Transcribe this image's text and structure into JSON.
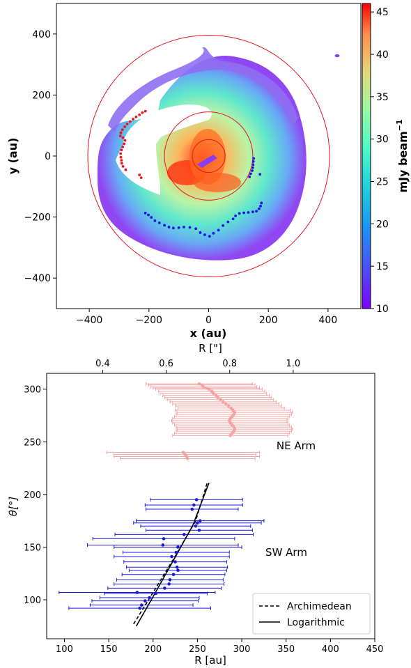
{
  "chart_data": [
    {
      "type": "heatmap",
      "xlabel": "x (au)",
      "ylabel": "y (au)",
      "xlim": [
        -510,
        510
      ],
      "ylim": [
        -500,
        500
      ],
      "x_ticks": [
        "−400",
        "−200",
        "0",
        "200",
        "400"
      ],
      "x_tick_values": [
        -400,
        -200,
        0,
        200,
        400
      ],
      "y_ticks": [
        "400",
        "200",
        "0",
        "−200",
        "−400"
      ],
      "y_tick_values": [
        400,
        200,
        0,
        -200,
        -400
      ],
      "colorbar": {
        "label": "mJy beam",
        "label_superscript": "−1",
        "range": [
          10,
          46
        ],
        "ticks": [
          "45",
          "40",
          "35",
          "30",
          "25",
          "20",
          "15",
          "10"
        ],
        "tick_values": [
          45,
          40,
          35,
          30,
          25,
          20,
          15,
          10
        ],
        "colormap": "rainbow"
      },
      "circles_radius_au": [
        55,
        148,
        405
      ],
      "circle_color": "#e8141c",
      "series": [
        {
          "color": "#e8141c",
          "points": [
            [
              -212,
              147
            ],
            [
              -222,
              142
            ],
            [
              -232,
              135
            ],
            [
              -243,
              128
            ],
            [
              -253,
              121
            ],
            [
              -263,
              113
            ],
            [
              -273,
              105
            ],
            [
              -281,
              96
            ],
            [
              -289,
              86
            ],
            [
              -294,
              76
            ],
            [
              -296,
              66
            ],
            [
              -287,
              60
            ],
            [
              -280,
              51
            ],
            [
              -283,
              40
            ],
            [
              -288,
              30
            ],
            [
              -292,
              20
            ],
            [
              -295,
              8
            ],
            [
              -294,
              -4
            ],
            [
              -292,
              -14
            ],
            [
              -291,
              -24
            ],
            [
              -287,
              -34
            ],
            [
              -278,
              -45
            ],
            [
              -232,
              -62
            ],
            [
              -226,
              -71
            ]
          ]
        },
        {
          "color": "#1414e8",
          "points": [
            [
              151,
              -8
            ],
            [
              150,
              -18
            ],
            [
              149,
              -28
            ],
            [
              148,
              -38
            ],
            [
              146,
              -48
            ],
            [
              141,
              -58
            ],
            [
              137,
              -68
            ],
            [
              172,
              -60
            ],
            [
              177,
              -154
            ],
            [
              174,
              -164
            ],
            [
              169,
              -173
            ],
            [
              160,
              -181
            ],
            [
              148,
              -183
            ],
            [
              133,
              -185
            ],
            [
              118,
              -186
            ],
            [
              103,
              -188
            ],
            [
              90,
              -196
            ],
            [
              82,
              -206
            ],
            [
              65,
              -216
            ],
            [
              48,
              -228
            ],
            [
              33,
              -243
            ],
            [
              16,
              -253
            ],
            [
              3,
              -263
            ],
            [
              -13,
              -258
            ],
            [
              -28,
              -251
            ],
            [
              -43,
              -238
            ],
            [
              -63,
              -234
            ],
            [
              -83,
              -233
            ],
            [
              -100,
              -235
            ],
            [
              -118,
              -236
            ],
            [
              -133,
              -233
            ],
            [
              -148,
              -227
            ],
            [
              -165,
              -219
            ],
            [
              -180,
              -212
            ],
            [
              -192,
              -201
            ],
            [
              -202,
              -193
            ],
            [
              -212,
              -187
            ]
          ]
        }
      ]
    },
    {
      "type": "scatter",
      "xlabel": "R [au]",
      "ylabel": "θ[°]",
      "top_axis_label": "R [\"]",
      "xlim": [
        80,
        450
      ],
      "ylim": [
        63,
        315
      ],
      "x_ticks": [
        "100",
        "150",
        "200",
        "250",
        "300",
        "350",
        "400",
        "450"
      ],
      "x_tick_values": [
        100,
        150,
        200,
        250,
        300,
        350,
        400,
        450
      ],
      "y_ticks": [
        "300",
        "250",
        "200",
        "150",
        "100"
      ],
      "y_tick_values": [
        300,
        250,
        200,
        150,
        100
      ],
      "top_ticks": [
        "0.4",
        "0.6",
        "0.8",
        "1.0"
      ],
      "top_tick_values": [
        0.4,
        0.6,
        0.8,
        1.0
      ],
      "top_axis_scale_au_per_arcsec": 358,
      "annotations": [
        "NE Arm",
        "SW Arm"
      ],
      "series": [
        {
          "name": "NE Arm",
          "color": "#f4a3a3",
          "points": [
            [
              252,
              305,
              60
            ],
            [
              255,
              304,
              60
            ],
            [
              257,
              302,
              60
            ],
            [
              260,
              301,
              60
            ],
            [
              263,
              300,
              60
            ],
            [
              266,
              298,
              60
            ],
            [
              268,
              296,
              60
            ],
            [
              271,
              294,
              60
            ],
            [
              273,
              292,
              60
            ],
            [
              276,
              290,
              60
            ],
            [
              279,
              288,
              60
            ],
            [
              282,
              286,
              60
            ],
            [
              285,
              284,
              60
            ],
            [
              288,
              282,
              60
            ],
            [
              290,
              280,
              65
            ],
            [
              292,
              278,
              65
            ],
            [
              291,
              276,
              65
            ],
            [
              289,
              274,
              65
            ],
            [
              287,
              272,
              65
            ],
            [
              286,
              270,
              65
            ],
            [
              287,
              268,
              65
            ],
            [
              289,
              266,
              65
            ],
            [
              291,
              264,
              65
            ],
            [
              292,
              262,
              65
            ],
            [
              291,
              260,
              65
            ],
            [
              289,
              258,
              65
            ],
            [
              287,
              256,
              65
            ],
            [
              234,
              240,
              86
            ],
            [
              236,
              238,
              80
            ],
            [
              238,
              236,
              82
            ],
            [
              239,
              234,
              76
            ]
          ]
        },
        {
          "name": "SW Arm",
          "color": "#1818dd",
          "points": [
            [
              249,
              195,
              52
            ],
            [
              246,
              190,
              55
            ],
            [
              244,
              186,
              52
            ],
            [
              250,
              173,
              72
            ],
            [
              253,
              175,
              72
            ],
            [
              248,
              170,
              62
            ],
            [
              252,
              166,
              60
            ],
            [
              235,
              162,
              78
            ],
            [
              212,
              158,
              80
            ],
            [
              211,
              152,
              85
            ],
            [
              228,
              150,
              72
            ],
            [
              226,
              145,
              60
            ],
            [
              221,
              141,
              65
            ],
            [
              225,
              136,
              58
            ],
            [
              227,
              131,
              57
            ],
            [
              228,
              128,
              55
            ],
            [
              223,
              124,
              58
            ],
            [
              219,
              119,
              60
            ],
            [
              218,
              115,
              62
            ],
            [
              213,
              111,
              64
            ],
            [
              203,
              106,
              58
            ],
            [
              196,
              102,
              56
            ],
            [
              182,
              107,
              88
            ],
            [
              191,
              99,
              60
            ],
            [
              187,
              95,
              58
            ],
            [
              185,
              92,
              80
            ]
          ]
        },
        {
          "name": "Archimedean",
          "color": "#000000",
          "dash": "dashed",
          "points": [
            [
              178,
              77
            ],
            [
              200,
              107
            ],
            [
              224,
              140
            ],
            [
              248,
              175
            ],
            [
              261,
              211
            ]
          ]
        },
        {
          "name": "Logarithmic",
          "color": "#000000",
          "dash": "solid",
          "points": [
            [
              181,
              75
            ],
            [
              198,
              100
            ],
            [
              222,
              136
            ],
            [
              245,
              171
            ],
            [
              263,
              211
            ]
          ]
        }
      ],
      "legend": {
        "placement": "bottom-right",
        "entries": [
          "Archimedean",
          "Logarithmic"
        ]
      }
    }
  ]
}
